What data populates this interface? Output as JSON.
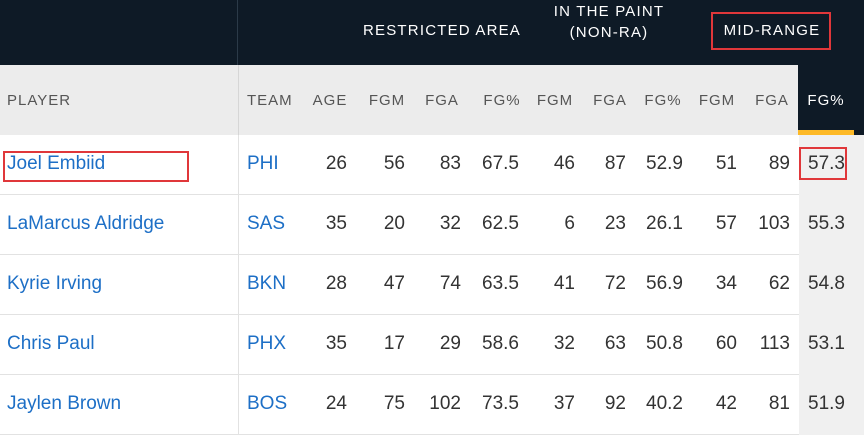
{
  "groups": {
    "restricted_area": "RESTRICTED AREA",
    "in_paint_line1": "IN THE PAINT",
    "in_paint_line2": "(NON-RA)",
    "mid_range": "MID-RANGE"
  },
  "columns": [
    "PLAYER",
    "TEAM",
    "AGE",
    "FGM",
    "FGA",
    "FG%",
    "FGM",
    "FGA",
    "FG%",
    "FGM",
    "FGA",
    "FG%"
  ],
  "rows": [
    {
      "player": "Joel Embiid",
      "team": "PHI",
      "age": "26",
      "ra_fgm": "56",
      "ra_fga": "83",
      "ra_pct": "67.5",
      "paint_fgm": "46",
      "paint_fga": "87",
      "paint_pct": "52.9",
      "mid_fgm": "51",
      "mid_fga": "89",
      "mid_pct": "57.3"
    },
    {
      "player": "LaMarcus Aldridge",
      "team": "SAS",
      "age": "35",
      "ra_fgm": "20",
      "ra_fga": "32",
      "ra_pct": "62.5",
      "paint_fgm": "6",
      "paint_fga": "23",
      "paint_pct": "26.1",
      "mid_fgm": "57",
      "mid_fga": "103",
      "mid_pct": "55.3"
    },
    {
      "player": "Kyrie Irving",
      "team": "BKN",
      "age": "28",
      "ra_fgm": "47",
      "ra_fga": "74",
      "ra_pct": "63.5",
      "paint_fgm": "41",
      "paint_fga": "72",
      "paint_pct": "56.9",
      "mid_fgm": "34",
      "mid_fga": "62",
      "mid_pct": "54.8"
    },
    {
      "player": "Chris Paul",
      "team": "PHX",
      "age": "35",
      "ra_fgm": "17",
      "ra_fga": "29",
      "ra_pct": "58.6",
      "paint_fgm": "32",
      "paint_fga": "63",
      "paint_pct": "50.8",
      "mid_fgm": "60",
      "mid_fga": "113",
      "mid_pct": "53.1"
    },
    {
      "player": "Jaylen Brown",
      "team": "BOS",
      "age": "24",
      "ra_fgm": "75",
      "ra_fga": "102",
      "ra_pct": "73.5",
      "paint_fgm": "37",
      "paint_fga": "92",
      "paint_pct": "40.2",
      "mid_fgm": "42",
      "mid_fga": "81",
      "mid_pct": "51.9"
    }
  ],
  "colors": {
    "header_dark": "#0e1a26",
    "link": "#1d6fc6",
    "accent": "#fdb927",
    "annotation": "#e0373a"
  }
}
